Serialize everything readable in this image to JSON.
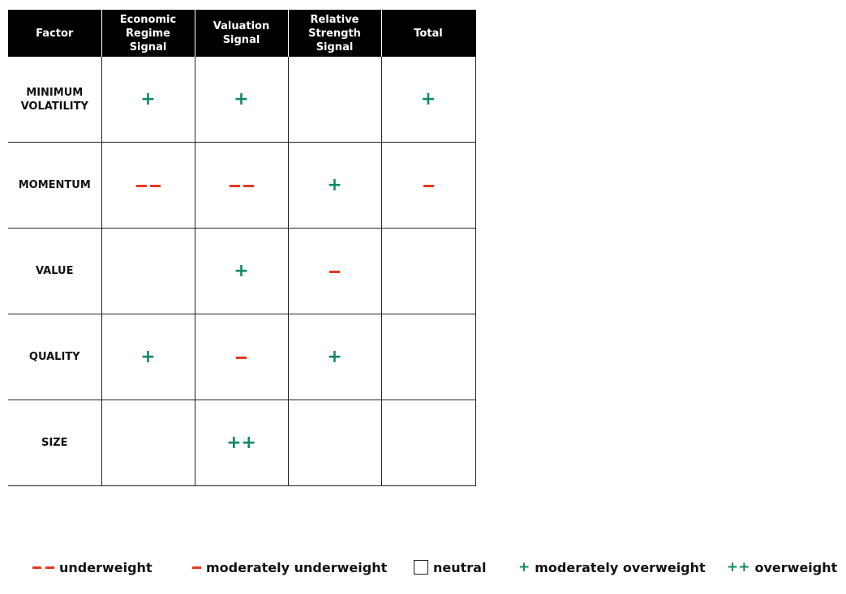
{
  "table": {
    "headers": [
      "Factor",
      "Economic\nRegime\nSignal",
      "Valuation\nSignal",
      "Relative\nStrength\nSignal",
      "Total"
    ],
    "rows": [
      {
        "factor": "MINIMUM VOLATILITY",
        "economic": "+",
        "valuation": "+",
        "relative": "",
        "total": "+"
      },
      {
        "factor": "MOMENTUM",
        "economic": "--",
        "valuation": "--",
        "relative": "+",
        "total": "-"
      },
      {
        "factor": "VALUE",
        "economic": "",
        "valuation": "+",
        "relative": "-",
        "total": ""
      },
      {
        "factor": "QUALITY",
        "economic": "+",
        "valuation": "-",
        "relative": "+",
        "total": ""
      },
      {
        "factor": "SIZE",
        "economic": "",
        "valuation": "++",
        "relative": "",
        "total": ""
      }
    ]
  },
  "legend": {
    "underweight": "underweight",
    "moderately_underweight": "moderately underweight",
    "neutral": "neutral",
    "moderately_overweight": "moderately overweight",
    "overweight": "overweight",
    "symbols": {
      "moderately_overweight": "+",
      "overweight": "++"
    }
  },
  "colors": {
    "positive": "#0f8a5f",
    "negative": "#e8371f",
    "header_bg": "#000000"
  }
}
